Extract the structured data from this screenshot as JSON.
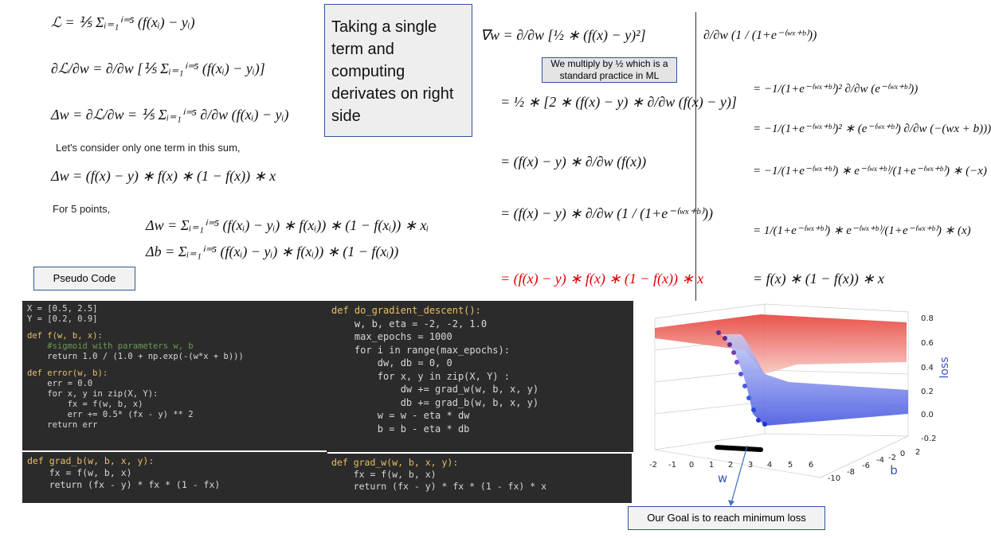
{
  "left_math": {
    "loss": "ℒ = ⅕ Σᵢ₌₁ⁱ⁼⁵ (f(xᵢ) − yᵢ)",
    "dl_dw": "∂ℒ/∂w = ∂/∂w [⅕ Σᵢ₌₁ⁱ⁼⁵ (f(xᵢ) − yᵢ)]",
    "delta_w": "Δw = ∂ℒ/∂w = ⅕ Σᵢ₌₁ⁱ⁼⁵ ∂/∂w (f(xᵢ) − yᵢ)",
    "note": "Let's consider only one term in this sum,",
    "delta_w_single": "Δw = (f(x) − y) ∗ f(x) ∗ (1 − f(x)) ∗ x",
    "for_points": "For 5 points,",
    "delta_w_sum": "Δw = Σᵢ₌₁ⁱ⁼⁵ (f(xᵢ) − yᵢ) ∗ f(xᵢ)) ∗ (1 − f(xᵢ)) ∗ xᵢ",
    "delta_b_sum": "Δb = Σᵢ₌₁ⁱ⁼⁵ (f(xᵢ) − yᵢ) ∗ f(xᵢ)) ∗ (1 − f(xᵢ))"
  },
  "callouts": {
    "single_term": "Taking a single term and computing derivates on right side",
    "half_note": "We multiply by ½ which is a standard practice in ML",
    "pseudo_code": "Pseudo Code",
    "goal": "Our Goal is to reach minimum loss"
  },
  "middle_math": {
    "gradient": "∇w = ∂/∂w [½ ∗ (f(x) − y)²]",
    "steps": [
      "= ½ ∗ [2 ∗ (f(x) − y) ∗ ∂/∂w (f(x) − y)]",
      "= (f(x) − y) ∗ ∂/∂w (f(x))",
      "= (f(x) − y) ∗ ∂/∂w (1 / (1+e⁻⁽ʷˣ⁺ᵇ⁾))",
      "= (f(x) − y) ∗ f(x) ∗ (1 − f(x)) ∗ x"
    ]
  },
  "right_math": {
    "derivative": "∂/∂w (1 / (1+e⁻⁽ʷˣ⁺ᵇ⁾))",
    "steps": [
      "= −1/(1+e⁻⁽ʷˣ⁺ᵇ⁾)² ∂/∂w (e⁻⁽ʷˣ⁺ᵇ⁾))",
      "= −1/(1+e⁻⁽ʷˣ⁺ᵇ⁾)² ∗ (e⁻⁽ʷˣ⁺ᵇ⁾) ∂/∂w (−(wx + b)))",
      "= −1/(1+e⁻⁽ʷˣ⁺ᵇ⁾) ∗ e⁻⁽ʷˣ⁺ᵇ⁾/(1+e⁻⁽ʷˣ⁺ᵇ⁾) ∗ (−x)",
      "= 1/(1+e⁻⁽ʷˣ⁺ᵇ⁾) ∗ e⁻⁽ʷˣ⁺ᵇ⁾/(1+e⁻⁽ʷˣ⁺ᵇ⁾) ∗ (x)",
      "= f(x) ∗ (1 − f(x)) ∗ x"
    ]
  },
  "code": [
    {
      "groups": [
        [
          "X = [0.5, 2.5]",
          "Y = [0.2, 0.9]"
        ],
        [
          "def f(w, b, x):",
          "    #sigmoid with parameters w, b",
          "    return 1.0 / (1.0 + np.exp(-(w*x + b)))"
        ],
        [
          "def error(w, b):",
          "    err = 0.0",
          "    for x, y in zip(X, Y):",
          "        fx = f(w, b, x)",
          "        err += 0.5* (fx - y) ** 2",
          "    return err"
        ]
      ]
    },
    {
      "groups": [
        [
          "def do_gradient_descent():",
          "    w, b, eta = -2, -2, 1.0",
          "    max_epochs = 1000",
          "    for i in range(max_epochs):",
          "        dw, db = 0, 0",
          "        for x, y in zip(X, Y) :",
          "            dw += grad_w(w, b, x, y)",
          "            db += grad_b(w, b, x, y)",
          "        w = w - eta * dw",
          "        b = b - eta * db"
        ]
      ]
    },
    {
      "groups": [
        [
          "def grad_b(w, b, x, y):",
          "    fx = f(w, b, x)",
          "    return (fx - y) * fx * (1 - fx)"
        ]
      ]
    },
    {
      "groups": [
        [
          "def grad_w(w, b, x, y):",
          "    fx = f(w, b, x)",
          "    return (fx - y) * fx * (1 - fx) * x"
        ]
      ]
    }
  ],
  "plot": {
    "z_label": "loss",
    "x_label": "w",
    "y_label": "b",
    "z_ticks": [
      0.8,
      0.6,
      0.4,
      0.2,
      {
        "value": 0,
        "label": "0.0"
      },
      -0.2
    ],
    "x_ticks": [
      -2,
      -1,
      0,
      1,
      2,
      3,
      4,
      5,
      6
    ],
    "y_ticks": [
      -10,
      -8,
      -6,
      -4,
      -2,
      0,
      2
    ]
  }
}
